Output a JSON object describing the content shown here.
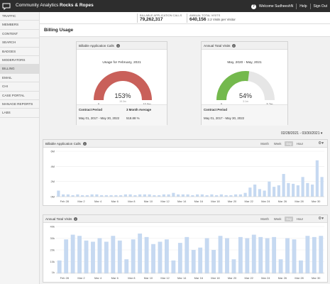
{
  "topbar": {
    "brand": "Community Analytics",
    "org": "Rocks & Ropes",
    "welcome": "Welcome SudheeshN",
    "help": "Help",
    "signout": "Sign Out"
  },
  "stats": {
    "billable_label": "BILLABLE APPLICATION CALLS",
    "billable_value": "79,262,317",
    "visits_label": "ANNUAL TOTAL VISITS",
    "visits_value": "640,156",
    "visits_sub": "2.2 Visits per Visitor"
  },
  "sidebar": {
    "items": [
      {
        "label": "TRAFFIC"
      },
      {
        "label": "MEMBERS"
      },
      {
        "label": "CONTENT"
      },
      {
        "label": "SEARCH"
      },
      {
        "label": "BADGES"
      },
      {
        "label": "MODERATORS"
      },
      {
        "label": "BILLING",
        "active": true
      },
      {
        "label": "EMAIL"
      },
      {
        "label": "CHI"
      },
      {
        "label": "CASE PORTAL"
      },
      {
        "label": "MANAGE REPORTS"
      },
      {
        "label": "LABS"
      }
    ]
  },
  "page": {
    "title": "Billing Usage"
  },
  "gauge_billable": {
    "title": "Billable Application Calls",
    "subtitle": "Usage for February, 2021",
    "percent": 153,
    "percent_label": "153%",
    "value_label": "15.3m",
    "min_label": "0",
    "max_label": "10.0m",
    "color": "#c9605a",
    "contract_label": "Contract Period",
    "contract_value": "May 01, 2017 - May 30, 2022",
    "avg_label": "3 Month Average",
    "avg_value": "518.88 %"
  },
  "gauge_visits": {
    "title": "Annual Total Visits",
    "subtitle": "May, 2020 - May, 2021",
    "percent": 54,
    "percent_label": "54%",
    "value_label": "3.1m",
    "min_label": "0",
    "max_label": "5.7m",
    "color": "#74b94d",
    "contract_label": "Contract Period",
    "contract_value": "May 01, 2017 - May 30, 2022"
  },
  "date_range": "02/28/2021 - 03/30/2021",
  "toggles": [
    "Month",
    "Week",
    "Day",
    "Hour"
  ],
  "toggle_active": "Day",
  "chart_data": [
    {
      "type": "bar",
      "title": "Billable Application Calls",
      "color": "#c6d9f1",
      "ylim": [
        0,
        6
      ],
      "yticks": [
        "0M",
        "2M",
        "4M",
        "6M"
      ],
      "ytick_values": [
        0,
        2,
        4,
        6
      ],
      "xtick_labels": [
        "Feb 28",
        "Mar 2",
        "Mar 4",
        "Mar 6",
        "Mar 8",
        "Mar 10",
        "Mar 12",
        "Mar 14",
        "Mar 16",
        "Mar 18",
        "Mar 20",
        "Mar 22",
        "Mar 24",
        "Mar 26",
        "Mar 28",
        "Mar 30"
      ],
      "values": [
        0.8,
        0.3,
        0.3,
        0.2,
        0.3,
        0.2,
        0.2,
        0.3,
        0.3,
        0.2,
        0.2,
        0.2,
        0.2,
        0.2,
        0.3,
        0.3,
        0.2,
        0.3,
        0.3,
        0.3,
        0.2,
        0.2,
        0.3,
        0.3,
        0.5,
        0.3,
        0.3,
        0.3,
        0.2,
        0.3,
        0.3,
        0.2,
        0.3,
        0.2,
        0.3,
        0.2,
        0.2,
        0.3,
        0.3,
        0.5,
        1.2,
        1.6,
        1.0,
        0.8,
        2.0,
        1.3,
        1.5,
        3.0,
        1.8,
        1.7,
        1.5,
        2.6,
        1.8,
        1.6,
        4.8,
        2.6
      ]
    },
    {
      "type": "bar",
      "title": "Annual Total Visits",
      "color": "#c6d9f1",
      "ylim": [
        0,
        40
      ],
      "yticks": [
        "1k",
        "10k",
        "20k",
        "30k",
        "40k"
      ],
      "ytick_values": [
        1,
        10,
        20,
        30,
        40
      ],
      "xtick_labels": [
        "Feb 28",
        "Mar 2",
        "Mar 4",
        "Mar 6",
        "Mar 8",
        "Mar 10",
        "Mar 12",
        "Mar 14",
        "Mar 16",
        "Mar 18",
        "Mar 20",
        "Mar 22",
        "Mar 24",
        "Mar 26",
        "Mar 28",
        "Mar 30"
      ],
      "values": [
        11,
        29,
        33,
        32,
        28,
        27,
        30,
        27,
        32,
        28,
        12,
        29,
        34,
        31,
        25,
        27,
        29,
        11,
        26,
        31,
        20,
        22,
        30,
        20,
        32,
        30,
        12,
        31,
        30,
        33,
        31,
        30,
        31,
        12,
        30,
        29,
        11,
        32,
        31,
        32
      ]
    }
  ]
}
